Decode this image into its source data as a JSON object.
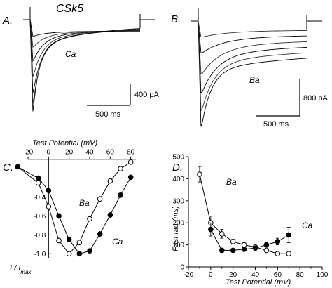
{
  "figure": {
    "title": "CSk5",
    "scale_bar_A": {
      "current": "400 pA",
      "time": "500 ms"
    },
    "scale_bar_B": {
      "current": "800 pA",
      "time": "500 ms"
    },
    "trace_labels": {
      "A": "Ca",
      "B": "Ba"
    }
  },
  "chart_data": [
    {
      "panel": "A.",
      "type": "line",
      "description_label": "Ca",
      "traces": [
        {
          "peak": 1.0,
          "plateau": 0.06
        },
        {
          "peak": 0.92,
          "plateau": 0.07
        },
        {
          "peak": 0.8,
          "plateau": 0.08
        },
        {
          "peak": 0.62,
          "plateau": 0.09
        },
        {
          "peak": 0.45,
          "plateau": 0.1
        },
        {
          "peak": 0.3,
          "plateau": 0.11
        },
        {
          "peak": 0.18,
          "plateau": 0.12
        }
      ]
    },
    {
      "panel": "B.",
      "type": "line",
      "description_label": "Ba",
      "traces": [
        {
          "peak": 1.0,
          "plateau": 0.28
        },
        {
          "peak": 0.85,
          "plateau": 0.24
        },
        {
          "peak": 0.68,
          "plateau": 0.2
        },
        {
          "peak": 0.5,
          "plateau": 0.16
        },
        {
          "peak": 0.3,
          "plateau": 0.12
        },
        {
          "peak": 0.15,
          "plateau": 0.08
        }
      ]
    },
    {
      "panel": "C.",
      "type": "line",
      "xlabel": "Test Potential (mV)",
      "ylabel": "I / Imax",
      "xlim": [
        -20,
        85
      ],
      "ylim": [
        -1.05,
        0.05
      ],
      "xticks": [
        -20,
        0,
        20,
        40,
        60,
        80
      ],
      "yticks": [
        -0.4,
        -0.6,
        -0.8,
        -1.0
      ],
      "ytick_labels": [
        "-0.4",
        "-0.6",
        "-0.8",
        "-1.0"
      ],
      "series": [
        {
          "name": "Ba",
          "marker": "open",
          "x": [
            -30,
            -10,
            0,
            10,
            20,
            30,
            40,
            50,
            60,
            70,
            80
          ],
          "y": [
            -0.08,
            -0.25,
            -0.5,
            -0.86,
            -1.0,
            -0.88,
            -0.63,
            -0.42,
            -0.23,
            -0.1,
            -0.03
          ],
          "err": [
            0.01,
            0.03,
            0.04,
            0.03,
            0.01,
            0.03,
            0.03,
            0.02,
            0.02,
            0.01,
            0.01
          ]
        },
        {
          "name": "Ca",
          "marker": "filled",
          "x": [
            -30,
            -10,
            0,
            10,
            20,
            30,
            40,
            50,
            60,
            70,
            80
          ],
          "y": [
            -0.08,
            -0.2,
            -0.33,
            -0.6,
            -0.85,
            -1.0,
            -0.97,
            -0.79,
            -0.59,
            -0.38,
            -0.19
          ],
          "err": [
            0.01,
            0.02,
            0.03,
            0.03,
            0.03,
            0.01,
            0.02,
            0.03,
            0.03,
            0.03,
            0.02
          ]
        }
      ]
    },
    {
      "panel": "D.",
      "type": "line",
      "xlabel": "Test Potential (mV)",
      "ylabel": "Fast tau (ms)",
      "xlim": [
        -20,
        100
      ],
      "ylim": [
        0,
        500
      ],
      "xticks": [
        -20,
        -10,
        0,
        10,
        20,
        30,
        40,
        50,
        60,
        70,
        80,
        90,
        100
      ],
      "yticks": [
        0,
        100,
        200,
        300,
        400,
        500
      ],
      "series": [
        {
          "name": "Ba",
          "marker": "open",
          "x": [
            -10,
            0,
            10,
            20,
            30,
            40,
            50,
            60,
            70
          ],
          "y": [
            420,
            200,
            150,
            115,
            100,
            90,
            75,
            60,
            60
          ],
          "err": [
            35,
            30,
            20,
            10,
            8,
            8,
            10,
            10,
            6
          ]
        },
        {
          "name": "Ca",
          "marker": "filled",
          "x": [
            0,
            10,
            20,
            30,
            40,
            50,
            60,
            70
          ],
          "y": [
            170,
            75,
            75,
            80,
            85,
            100,
            115,
            145
          ],
          "err": [
            30,
            10,
            8,
            6,
            8,
            10,
            15,
            35
          ]
        }
      ]
    }
  ]
}
